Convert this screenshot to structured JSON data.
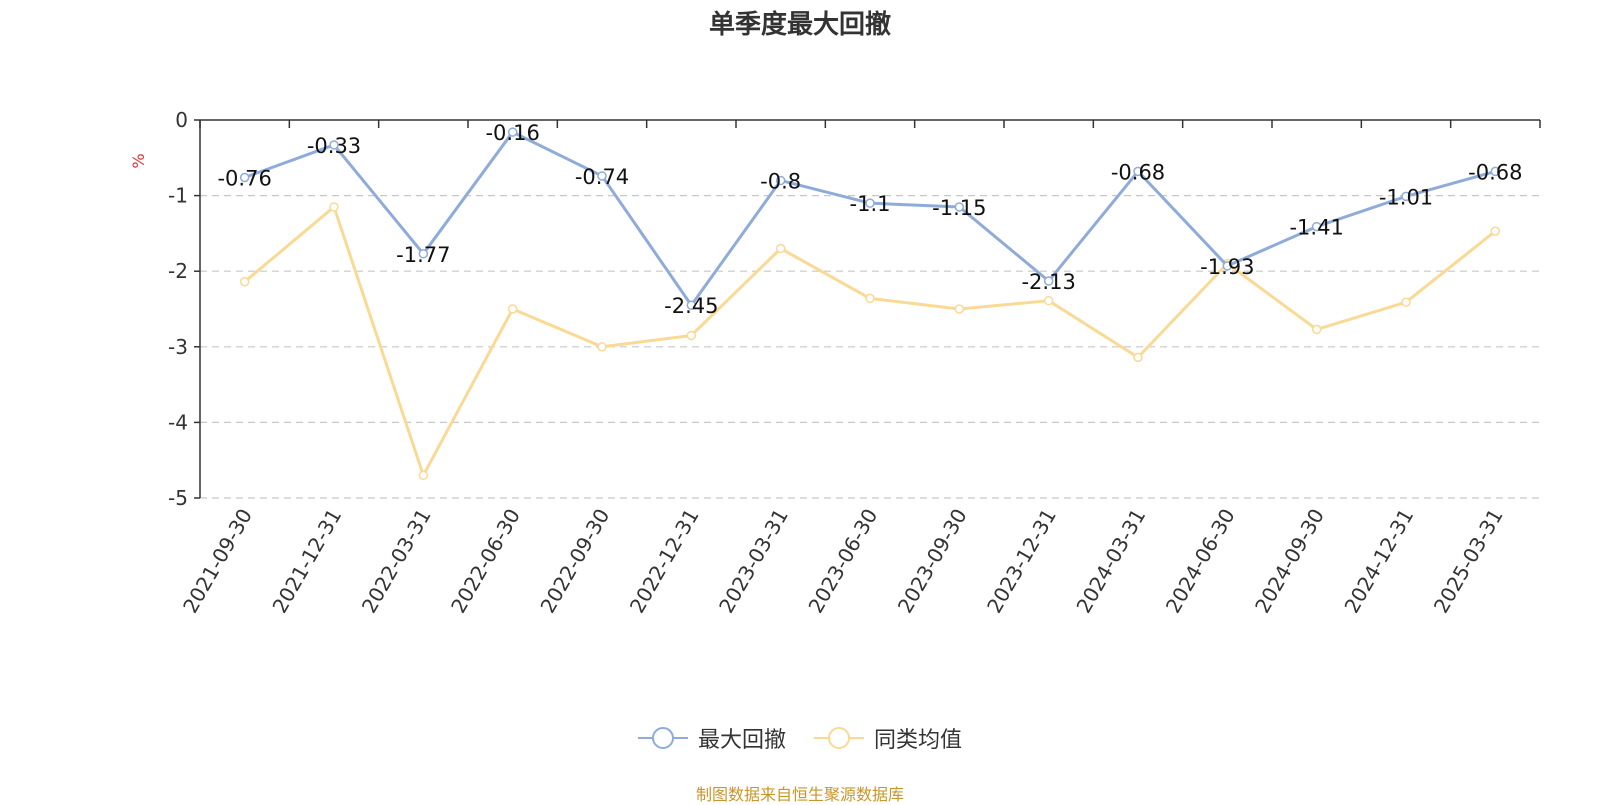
{
  "chart_data": {
    "type": "line",
    "title": "单季度最大回撤",
    "ylabel": "%",
    "xlabel": "",
    "ylim": [
      -5,
      0
    ],
    "yticks": [
      0,
      -1,
      -2,
      -3,
      -4,
      -5
    ],
    "grid": true,
    "legend_position": "bottom-center",
    "categories": [
      "2021-09-30",
      "2021-12-31",
      "2022-03-31",
      "2022-06-30",
      "2022-09-30",
      "2022-12-31",
      "2023-03-31",
      "2023-06-30",
      "2023-09-30",
      "2023-12-31",
      "2024-03-31",
      "2024-06-30",
      "2024-09-30",
      "2024-12-31",
      "2025-03-31"
    ],
    "series": [
      {
        "name": "最大回撤",
        "color": "#8fabd9",
        "show_labels": true,
        "values": [
          -0.76,
          -0.33,
          -1.77,
          -0.16,
          -0.74,
          -2.45,
          -0.8,
          -1.1,
          -1.15,
          -2.13,
          -0.68,
          -1.93,
          -1.41,
          -1.01,
          -0.68
        ]
      },
      {
        "name": "同类均值",
        "color": "#fad994",
        "show_labels": false,
        "values": [
          -2.14,
          -1.15,
          -4.7,
          -2.5,
          -3.0,
          -2.85,
          -1.7,
          -2.36,
          -2.5,
          -2.39,
          -3.14,
          -1.9,
          -2.77,
          -2.41,
          -1.47
        ]
      }
    ]
  },
  "source_note": "制图数据来自恒生聚源数据库",
  "colors": {
    "axis": "#333333",
    "grid": "#c8c8c8",
    "ylabel": "#e03030",
    "source": "#c8962a"
  }
}
